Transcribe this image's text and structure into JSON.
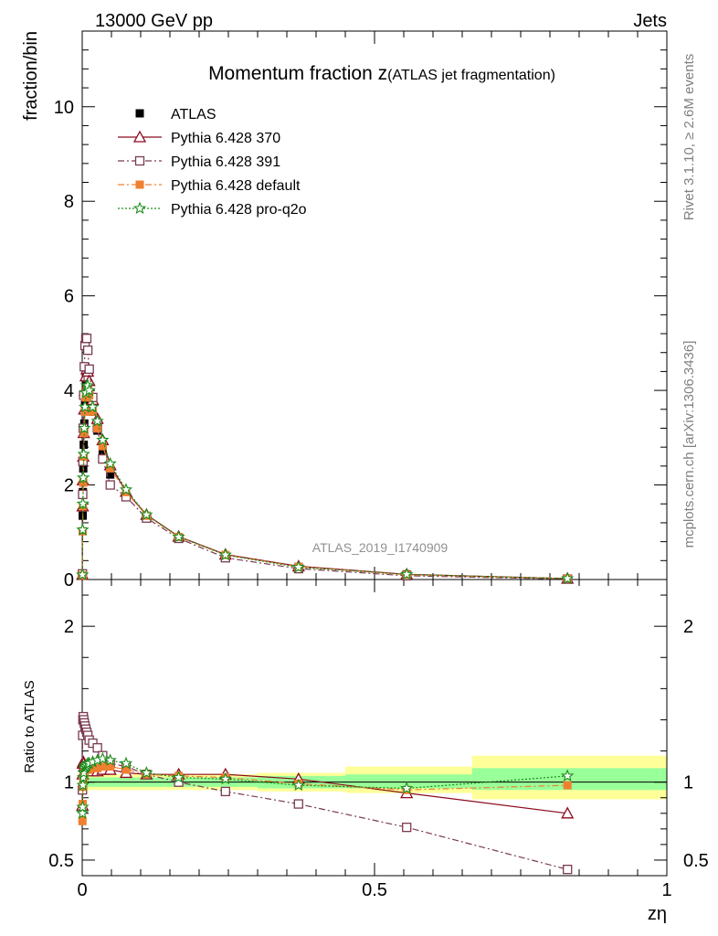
{
  "header": {
    "left": "13000 GeV pp",
    "right": "Jets"
  },
  "side_labels": {
    "rivet": "Rivet 3.1.10, ≥ 2.6M events",
    "mcplots": "mcplots.cern.ch [arXiv:1306.3436]"
  },
  "analysis_label": "ATLAS_2019_I1740909",
  "chart_data": [
    {
      "type": "scatter",
      "panel": "main",
      "title": "Momentum fraction z",
      "subtitle": "(ATLAS jet fragmentation)",
      "xlabel": "",
      "ylabel": "fraction/bin",
      "xlim": [
        0,
        1
      ],
      "ylim": [
        0,
        11.6
      ],
      "y_ticks": [
        0,
        2,
        4,
        6,
        8,
        10
      ],
      "x": [
        0.0004,
        0.0008,
        0.0012,
        0.0018,
        0.0026,
        0.0036,
        0.0048,
        0.0062,
        0.0078,
        0.0096,
        0.012,
        0.018,
        0.026,
        0.035,
        0.048,
        0.075,
        0.11,
        0.165,
        0.245,
        0.37,
        0.555,
        0.83
      ],
      "series": [
        {
          "name": "ATLAS",
          "color": "#000000",
          "marker": "filled-square",
          "values": [
            0.12,
            1.35,
            1.85,
            2.35,
            2.85,
            3.3,
            3.7,
            4.0,
            4.1,
            4.05,
            3.9,
            3.55,
            3.15,
            2.72,
            2.22,
            1.76,
            1.3,
            0.87,
            0.5,
            0.27,
            0.11,
            0.02
          ],
          "errors": [
            0.03,
            0.07,
            0.07,
            0.07,
            0.07,
            0.07,
            0.07,
            0.07,
            0.07,
            0.07,
            0.06,
            0.06,
            0.05,
            0.05,
            0.04,
            0.04,
            0.03,
            0.02,
            0.02,
            0.01,
            0.01,
            0.005
          ]
        },
        {
          "name": "Pythia 6.428 370",
          "color": "#8b0a1e",
          "marker": "open-triangle",
          "line": "solid",
          "values": [
            0.1,
            1.55,
            2.1,
            2.6,
            3.1,
            3.6,
            4.0,
            4.3,
            4.45,
            4.4,
            4.2,
            3.8,
            3.4,
            2.95,
            2.42,
            1.86,
            1.37,
            0.91,
            0.53,
            0.28,
            0.11,
            0.02
          ]
        },
        {
          "name": "Pythia 6.428 391",
          "color": "#7a3b52",
          "marker": "open-square",
          "line": "dashdot",
          "values": [
            0.12,
            1.8,
            2.5,
            3.2,
            3.9,
            4.5,
            4.95,
            5.1,
            5.1,
            4.85,
            4.45,
            3.85,
            3.2,
            2.55,
            2.0,
            1.75,
            1.3,
            0.87,
            0.46,
            0.23,
            0.08,
            0.01
          ]
        },
        {
          "name": "Pythia 6.428 default",
          "color": "#f08030",
          "marker": "filled-square",
          "line": "dashdot",
          "values": [
            0.09,
            1.02,
            1.55,
            2.05,
            2.6,
            3.1,
            3.55,
            3.85,
            4.0,
            4.0,
            3.9,
            3.55,
            3.2,
            2.82,
            2.35,
            1.85,
            1.35,
            0.9,
            0.52,
            0.27,
            0.1,
            0.02
          ]
        },
        {
          "name": "Pythia 6.428 pro-q2o",
          "color": "#1a8c1a",
          "marker": "open-star",
          "line": "dotted",
          "values": [
            0.1,
            1.05,
            1.6,
            2.15,
            2.65,
            3.2,
            3.65,
            3.95,
            4.1,
            4.1,
            4.0,
            3.65,
            3.35,
            2.95,
            2.45,
            1.9,
            1.37,
            0.9,
            0.52,
            0.26,
            0.11,
            0.02
          ]
        }
      ]
    },
    {
      "type": "scatter",
      "panel": "ratio",
      "xlabel": "zη",
      "ylabel": "Ratio to ATLAS",
      "xlim": [
        0,
        1
      ],
      "ylim": [
        0.4,
        2.3
      ],
      "y_ticks": [
        0.5,
        1,
        2
      ],
      "x_ticks": [
        0,
        0.5,
        1
      ],
      "x": [
        0.0004,
        0.0008,
        0.0012,
        0.0018,
        0.0026,
        0.0036,
        0.0048,
        0.0062,
        0.0078,
        0.0096,
        0.012,
        0.018,
        0.026,
        0.035,
        0.048,
        0.075,
        0.11,
        0.165,
        0.245,
        0.37,
        0.555,
        0.83
      ],
      "bands": {
        "bins": [
          [
            0,
            0.01
          ],
          [
            0.01,
            0.1
          ],
          [
            0.1,
            0.3
          ],
          [
            0.3,
            0.45
          ],
          [
            0.45,
            0.667
          ],
          [
            0.667,
            1.0
          ]
        ],
        "green": [
          [
            0.96,
            1.04
          ],
          [
            0.97,
            1.03
          ],
          [
            0.97,
            1.03
          ],
          [
            0.96,
            1.04
          ],
          [
            0.96,
            1.05
          ],
          [
            0.95,
            1.09
          ]
        ],
        "yellow": [
          [
            0.93,
            1.07
          ],
          [
            0.95,
            1.05
          ],
          [
            0.95,
            1.05
          ],
          [
            0.94,
            1.06
          ],
          [
            0.93,
            1.1
          ],
          [
            0.89,
            1.17
          ]
        ]
      },
      "series": [
        {
          "name": "Pythia 6.428 370",
          "color": "#8b0a1e",
          "marker": "open-triangle",
          "values": [
            0.85,
            1.05,
            1.12,
            1.13,
            1.12,
            1.1,
            1.1,
            1.09,
            1.08,
            1.08,
            1.08,
            1.07,
            1.07,
            1.08,
            1.08,
            1.06,
            1.05,
            1.05,
            1.05,
            1.02,
            0.93,
            0.8
          ]
        },
        {
          "name": "Pythia 6.428 391",
          "color": "#7a3b52",
          "marker": "open-square",
          "values": [
            0.95,
            1.3,
            1.4,
            1.42,
            1.4,
            1.38,
            1.36,
            1.34,
            1.32,
            1.3,
            1.27,
            1.25,
            1.22,
            1.17,
            1.12,
            1.1,
            1.05,
            1.0,
            0.94,
            0.86,
            0.71,
            0.44
          ]
        },
        {
          "name": "Pythia 6.428 default",
          "color": "#f08030",
          "marker": "filled-square",
          "values": [
            0.75,
            0.86,
            0.97,
            1.02,
            1.05,
            1.07,
            1.08,
            1.08,
            1.08,
            1.08,
            1.08,
            1.09,
            1.09,
            1.1,
            1.1,
            1.08,
            1.05,
            1.04,
            1.03,
            0.99,
            0.95,
            0.98
          ]
        },
        {
          "name": "Pythia 6.428 pro-q2o",
          "color": "#1a8c1a",
          "marker": "open-star",
          "values": [
            0.8,
            0.84,
            0.98,
            1.03,
            1.06,
            1.09,
            1.1,
            1.1,
            1.11,
            1.12,
            1.12,
            1.13,
            1.14,
            1.15,
            1.14,
            1.12,
            1.06,
            1.03,
            1.02,
            0.98,
            0.96,
            1.04
          ]
        }
      ]
    }
  ]
}
